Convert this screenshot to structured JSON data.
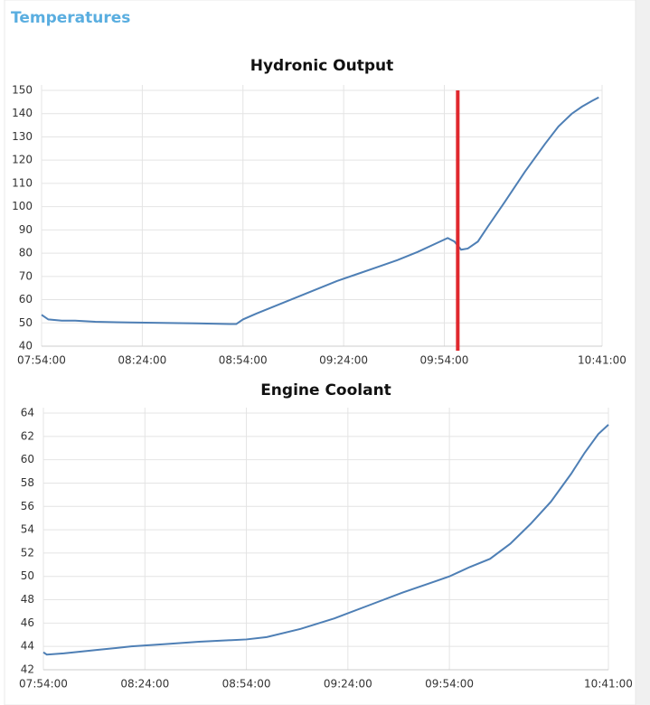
{
  "header": {
    "title": "Temperatures"
  },
  "chart_data": [
    {
      "type": "line",
      "title": "Hydronic Output",
      "color": "#4e7fb5",
      "x": [
        "07:54:00",
        "07:56:00",
        "08:00:00",
        "08:04:00",
        "08:10:00",
        "08:20:00",
        "08:30:00",
        "08:40:00",
        "08:50:00",
        "08:52:00",
        "08:54:00",
        "08:58:00",
        "09:04:00",
        "09:10:00",
        "09:16:00",
        "09:22:00",
        "09:28:00",
        "09:34:00",
        "09:40:00",
        "09:46:00",
        "09:52:00",
        "09:55:00",
        "09:57:00",
        "09:59:00",
        "10:01:00",
        "10:04:00",
        "10:07:00",
        "10:12:00",
        "10:18:00",
        "10:24:00",
        "10:28:00",
        "10:32:00",
        "10:35:00",
        "10:38:00",
        "10:40:00"
      ],
      "values": [
        53.5,
        51.5,
        51,
        51,
        50.5,
        50.2,
        50,
        49.8,
        49.5,
        49.5,
        51.5,
        54,
        57.5,
        61,
        64.5,
        68,
        71,
        74,
        77,
        80.5,
        84.5,
        86.5,
        85,
        81.5,
        82,
        85,
        91.5,
        102,
        115,
        127,
        134.5,
        140,
        143,
        145.5,
        147
      ],
      "xlim": [
        "07:54:00",
        "10:41:00"
      ],
      "xticks": [
        "07:54:00",
        "08:24:00",
        "08:54:00",
        "09:24:00",
        "09:54:00",
        "10:41:00"
      ],
      "ylim": [
        40,
        150
      ],
      "yticks": [
        40,
        50,
        60,
        70,
        80,
        90,
        100,
        110,
        120,
        130,
        140,
        150
      ],
      "grid": true,
      "vlines": [
        {
          "x": "09:58:00",
          "color": "#e0282e"
        }
      ]
    },
    {
      "type": "line",
      "title": "Engine Coolant",
      "color": "#4e7fb5",
      "x": [
        "07:54:00",
        "07:55:00",
        "08:00:00",
        "08:10:00",
        "08:20:00",
        "08:30:00",
        "08:40:00",
        "08:54:00",
        "09:00:00",
        "09:10:00",
        "09:20:00",
        "09:30:00",
        "09:40:00",
        "09:50:00",
        "09:54:00",
        "10:00:00",
        "10:06:00",
        "10:12:00",
        "10:18:00",
        "10:24:00",
        "10:30:00",
        "10:34:00",
        "10:38:00",
        "10:41:00"
      ],
      "values": [
        43.5,
        43.3,
        43.4,
        43.7,
        44,
        44.2,
        44.4,
        44.6,
        44.8,
        45.5,
        46.4,
        47.5,
        48.6,
        49.6,
        50,
        50.8,
        51.5,
        52.8,
        54.5,
        56.4,
        58.8,
        60.6,
        62.2,
        63
      ],
      "xlim": [
        "07:54:00",
        "10:41:00"
      ],
      "xticks": [
        "07:54:00",
        "08:24:00",
        "08:54:00",
        "09:24:00",
        "09:54:00",
        "10:41:00"
      ],
      "ylim": [
        42,
        64
      ],
      "yticks": [
        42,
        44,
        46,
        48,
        50,
        52,
        54,
        56,
        58,
        60,
        62,
        64
      ],
      "grid": true
    }
  ]
}
